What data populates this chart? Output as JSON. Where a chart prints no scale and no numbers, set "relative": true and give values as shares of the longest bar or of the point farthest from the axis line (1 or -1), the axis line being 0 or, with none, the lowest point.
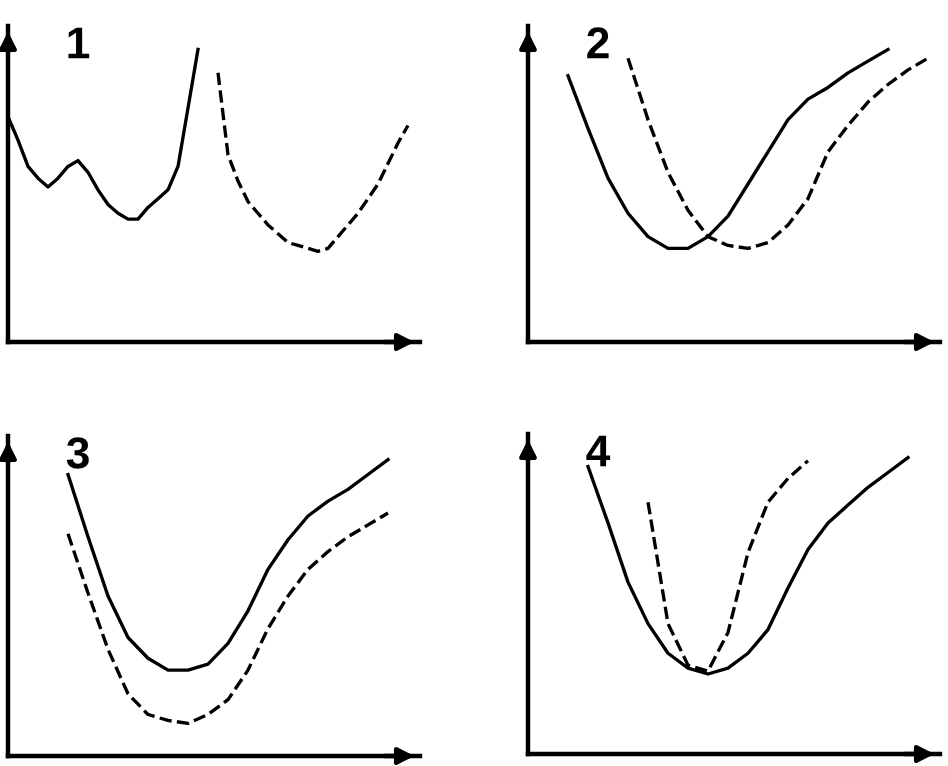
{
  "chart_data": [
    {
      "type": "line",
      "title": "1",
      "relative": true,
      "categories": [
        null,
        null,
        null,
        null,
        null,
        null,
        null,
        null,
        null,
        null,
        null,
        null,
        null,
        null,
        null,
        null,
        null,
        null,
        null,
        null,
        null,
        null,
        null,
        null,
        null,
        null,
        null,
        null,
        null,
        null,
        null,
        null,
        null,
        null,
        null,
        null,
        null,
        null,
        null,
        null,
        null
      ],
      "series": [
        {
          "color": "#000000",
          "line_style": "solid",
          "values": [
            0.77,
            0.69,
            0.6,
            0.56,
            0.53,
            0.56,
            0.6,
            0.62,
            0.58,
            0.52,
            0.47,
            0.44,
            0.42,
            0.42,
            0.46,
            0.49,
            0.52,
            0.6,
            0.8,
            1.0,
            null,
            null,
            null,
            null,
            null,
            null,
            null,
            null,
            null,
            null,
            null,
            null,
            null,
            null,
            null,
            null,
            null,
            null,
            null,
            null,
            null
          ]
        },
        {
          "color": "#000000",
          "line_style": "dashed",
          "values": [
            null,
            null,
            null,
            null,
            null,
            null,
            null,
            null,
            null,
            null,
            null,
            null,
            null,
            null,
            null,
            null,
            null,
            null,
            null,
            null,
            null,
            0.92,
            0.64,
            0.55,
            0.48,
            0.44,
            0.4,
            0.37,
            0.34,
            0.33,
            0.32,
            0.31,
            0.32,
            0.36,
            0.4,
            0.44,
            0.49,
            0.54,
            0.61,
            0.68,
            0.74
          ]
        }
      ]
    },
    {
      "type": "line",
      "title": "2",
      "relative": true,
      "categories": [
        null,
        null,
        null,
        null,
        null,
        null,
        null,
        null,
        null,
        null,
        null,
        null,
        null,
        null,
        null,
        null,
        null,
        null,
        null,
        null,
        null
      ],
      "series": [
        {
          "color": "#000000",
          "line_style": "solid",
          "values": [
            null,
            null,
            0.91,
            0.73,
            0.56,
            0.44,
            0.36,
            0.32,
            0.32,
            0.36,
            0.43,
            0.54,
            0.65,
            0.76,
            0.83,
            0.87,
            0.92,
            0.96,
            1.0,
            null,
            null
          ]
        },
        {
          "color": "#000000",
          "line_style": "dashed",
          "values": [
            null,
            null,
            null,
            null,
            null,
            0.97,
            0.76,
            0.58,
            0.45,
            0.36,
            0.33,
            0.32,
            0.34,
            0.4,
            0.49,
            0.65,
            0.74,
            0.82,
            0.88,
            0.93,
            0.97
          ]
        }
      ]
    },
    {
      "type": "line",
      "title": "3",
      "relative": true,
      "categories": [
        null,
        null,
        null,
        null,
        null,
        null,
        null,
        null,
        null,
        null,
        null,
        null,
        null,
        null,
        null,
        null,
        null,
        null,
        null,
        null,
        null
      ],
      "series": [
        {
          "color": "#000000",
          "line_style": "solid",
          "values": [
            null,
            null,
            null,
            0.95,
            0.74,
            0.54,
            0.4,
            0.33,
            0.29,
            0.29,
            0.31,
            0.38,
            0.49,
            0.63,
            0.73,
            0.81,
            0.86,
            0.9,
            0.95,
            1.0,
            null
          ]
        },
        {
          "color": "#000000",
          "line_style": "dashed",
          "values": [
            null,
            null,
            null,
            0.75,
            0.55,
            0.36,
            0.21,
            0.14,
            0.12,
            0.11,
            0.14,
            0.19,
            0.29,
            0.43,
            0.54,
            0.63,
            0.69,
            0.74,
            0.78,
            0.82,
            null
          ]
        }
      ]
    },
    {
      "type": "line",
      "title": "4",
      "relative": true,
      "categories": [
        null,
        null,
        null,
        null,
        null,
        null,
        null,
        null,
        null,
        null,
        null,
        null,
        null,
        null,
        null,
        null,
        null,
        null,
        null,
        null,
        null
      ],
      "series": [
        {
          "color": "#000000",
          "line_style": "solid",
          "values": [
            null,
            null,
            null,
            0.97,
            0.78,
            0.58,
            0.44,
            0.34,
            0.29,
            0.27,
            0.29,
            0.34,
            0.42,
            0.56,
            0.69,
            0.78,
            0.84,
            0.9,
            0.95,
            1.0,
            null
          ]
        },
        {
          "color": "#000000",
          "line_style": "dashed",
          "values": [
            null,
            null,
            null,
            null,
            null,
            null,
            0.85,
            0.44,
            0.3,
            0.28,
            0.41,
            0.68,
            0.85,
            0.93,
            0.99,
            null,
            null,
            null,
            null,
            null,
            null
          ]
        }
      ]
    }
  ]
}
